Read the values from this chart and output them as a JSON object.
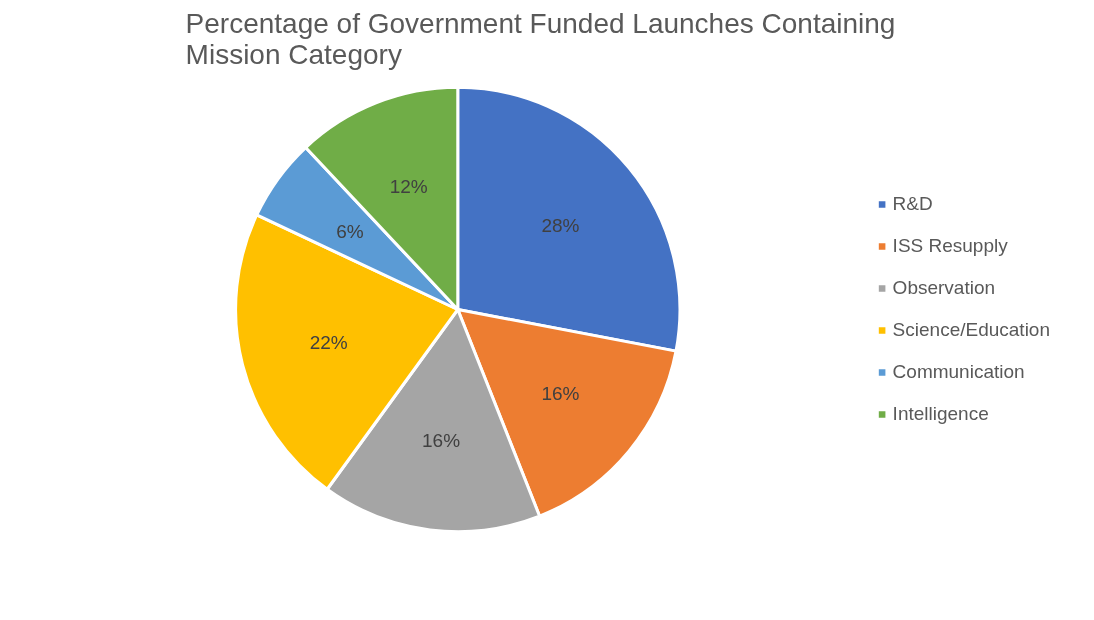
{
  "chart_data": {
    "type": "pie",
    "title": "Percentage of Government Funded Launches Containing Mission Category",
    "categories": [
      "R&D",
      "ISS Resupply",
      "Observation",
      "Science/Education",
      "Communication",
      "Intelligence"
    ],
    "values": [
      28,
      16,
      16,
      22,
      6,
      12
    ],
    "colors": [
      "#4472c4",
      "#ed7d31",
      "#a5a5a5",
      "#ffc000",
      "#5b9bd5",
      "#70ad47"
    ],
    "value_labels": [
      "28%",
      "16%",
      "16%",
      "22%",
      "6%",
      "12%"
    ],
    "legend": "right"
  }
}
